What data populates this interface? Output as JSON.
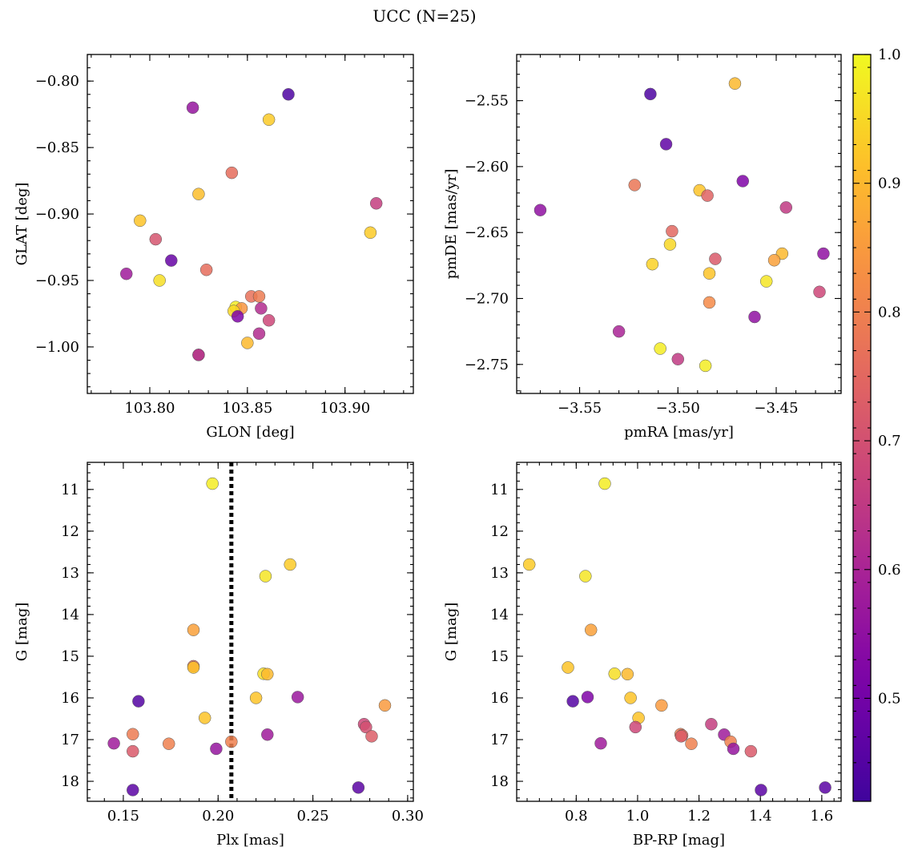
{
  "figure": {
    "title": "UCC (N=25)"
  },
  "colorbar": {
    "min": 0.42,
    "max": 1.0,
    "ticks": [
      0.5,
      0.6,
      0.7,
      0.8,
      0.9,
      1.0
    ],
    "tick_labels": [
      "0.5",
      "0.6",
      "0.7",
      "0.8",
      "0.9",
      "1.0"
    ],
    "colormap": "plasma"
  },
  "chart_data": [
    {
      "id": "glon-glat",
      "type": "scatter",
      "xlabel": "GLON [deg]",
      "ylabel": "GLAT [deg]",
      "xlim": [
        103.768,
        103.935
      ],
      "ylim": [
        -1.035,
        -0.78
      ],
      "y_inverted": false,
      "xticks": [
        103.8,
        103.85,
        103.9
      ],
      "xtick_labels": [
        "103.80",
        "103.85",
        "103.90"
      ],
      "yticks": [
        -0.8,
        -0.85,
        -0.9,
        -0.95,
        -1.0
      ],
      "ytick_labels": [
        "−0.80",
        "−0.85",
        "−0.90",
        "−0.95",
        "−1.00"
      ],
      "x": [
        103.871,
        103.822,
        103.861,
        103.842,
        103.825,
        103.916,
        103.795,
        103.913,
        103.803,
        103.811,
        103.788,
        103.829,
        103.805,
        103.852,
        103.856,
        103.844,
        103.847,
        103.857,
        103.843,
        103.845,
        103.861,
        103.856,
        103.85,
        103.825,
        103.825
      ],
      "y": [
        -0.81,
        -0.82,
        -0.829,
        -0.869,
        -0.885,
        -0.892,
        -0.905,
        -0.914,
        -0.919,
        -0.935,
        -0.945,
        -0.942,
        -0.95,
        -0.962,
        -0.962,
        -0.97,
        -0.971,
        -0.971,
        -0.973,
        -0.977,
        -0.98,
        -0.99,
        -0.997,
        -1.006,
        -1.006
      ],
      "c": [
        0.44,
        0.56,
        0.93,
        0.76,
        0.91,
        0.66,
        0.92,
        0.93,
        0.71,
        0.48,
        0.58,
        0.76,
        0.96,
        0.77,
        0.79,
        0.98,
        0.84,
        0.62,
        0.95,
        0.52,
        0.68,
        0.62,
        0.9,
        0.88,
        0.6
      ]
    },
    {
      "id": "pmra-pmde",
      "type": "scatter",
      "xlabel": "pmRA [mas/yr]",
      "ylabel": "pmDE [mas/yr]",
      "xlim": [
        -3.582,
        -3.417
      ],
      "ylim": [
        -2.772,
        -2.515
      ],
      "y_inverted": false,
      "xticks": [
        -3.55,
        -3.5,
        -3.45
      ],
      "xtick_labels": [
        "−3.55",
        "−3.50",
        "−3.45"
      ],
      "yticks": [
        -2.55,
        -2.6,
        -2.65,
        -2.7,
        -2.75
      ],
      "ytick_labels": [
        "−2.55",
        "−2.60",
        "−2.65",
        "−2.70",
        "−2.75"
      ],
      "x": [
        -3.471,
        -3.514,
        -3.506,
        -3.467,
        -3.522,
        -3.489,
        -3.485,
        -3.445,
        -3.57,
        -3.503,
        -3.504,
        -3.481,
        -3.447,
        -3.451,
        -3.513,
        -3.426,
        -3.484,
        -3.455,
        -3.428,
        -3.484,
        -3.461,
        -3.53,
        -3.509,
        -3.5,
        -3.486
      ],
      "y": [
        -2.537,
        -2.545,
        -2.583,
        -2.611,
        -2.614,
        -2.618,
        -2.622,
        -2.631,
        -2.633,
        -2.649,
        -2.659,
        -2.67,
        -2.666,
        -2.671,
        -2.674,
        -2.666,
        -2.681,
        -2.687,
        -2.695,
        -2.703,
        -2.714,
        -2.725,
        -2.738,
        -2.746,
        -2.751
      ],
      "c": [
        0.9,
        0.44,
        0.47,
        0.52,
        0.78,
        0.92,
        0.74,
        0.65,
        0.55,
        0.75,
        0.95,
        0.72,
        0.9,
        0.86,
        0.94,
        0.55,
        0.92,
        0.97,
        0.68,
        0.82,
        0.55,
        0.6,
        0.98,
        0.65,
        0.98
      ]
    },
    {
      "id": "plx-g",
      "type": "scatter",
      "xlabel": "Plx [mas]",
      "ylabel": "G [mag]",
      "xlim": [
        0.131,
        0.303
      ],
      "ylim": [
        18.48,
        10.35
      ],
      "y_inverted": true,
      "xticks": [
        0.15,
        0.2,
        0.25,
        0.3
      ],
      "xtick_labels": [
        "0.15",
        "0.20",
        "0.25",
        "0.30"
      ],
      "yticks": [
        11,
        12,
        13,
        14,
        15,
        16,
        17,
        18
      ],
      "ytick_labels": [
        "11",
        "12",
        "13",
        "14",
        "15",
        "16",
        "17",
        "18"
      ],
      "vline": {
        "x": 0.207
      },
      "x": [
        0.197,
        0.238,
        0.225,
        0.187,
        0.187,
        0.187,
        0.224,
        0.226,
        0.158,
        0.22,
        0.242,
        0.288,
        0.193,
        0.277,
        0.278,
        0.281,
        0.155,
        0.226,
        0.207,
        0.145,
        0.174,
        0.199,
        0.155,
        0.155,
        0.274
      ],
      "y": [
        10.86,
        12.8,
        13.08,
        14.37,
        15.24,
        15.27,
        15.42,
        15.43,
        16.08,
        16.0,
        15.98,
        16.18,
        16.48,
        16.63,
        16.7,
        16.92,
        16.87,
        16.88,
        17.05,
        17.09,
        17.1,
        17.22,
        17.28,
        18.21,
        18.15
      ],
      "c": [
        0.98,
        0.93,
        0.97,
        0.86,
        0.76,
        0.92,
        0.96,
        0.9,
        0.45,
        0.92,
        0.57,
        0.85,
        0.92,
        0.68,
        0.7,
        0.73,
        0.79,
        0.58,
        0.8,
        0.58,
        0.8,
        0.56,
        0.72,
        0.46,
        0.46
      ],
      "c_note": ""
    },
    {
      "id": "bprp-g",
      "type": "scatter",
      "xlabel": "BP-RP [mag]",
      "ylabel": "G [mag]",
      "xlim": [
        0.606,
        1.663
      ],
      "ylim": [
        18.48,
        10.35
      ],
      "y_inverted": true,
      "xticks": [
        0.8,
        1.0,
        1.2,
        1.4,
        1.6
      ],
      "xtick_labels": [
        "0.8",
        "1.0",
        "1.2",
        "1.4",
        "1.6"
      ],
      "yticks": [
        11,
        12,
        13,
        14,
        15,
        16,
        17,
        18
      ],
      "ytick_labels": [
        "11",
        "12",
        "13",
        "14",
        "15",
        "16",
        "17",
        "18"
      ],
      "x": [
        0.893,
        0.647,
        0.83,
        0.848,
        0.773,
        0.925,
        0.967,
        0.837,
        0.789,
        0.977,
        1.078,
        1.003,
        0.993,
        1.24,
        1.14,
        1.145,
        1.282,
        1.175,
        1.303,
        1.312,
        1.369,
        0.88,
        1.402,
        1.611,
        1.142
      ],
      "y": [
        10.86,
        12.8,
        13.08,
        14.37,
        15.27,
        15.42,
        15.43,
        15.98,
        16.08,
        16.0,
        16.18,
        16.48,
        16.7,
        16.63,
        16.87,
        16.9,
        16.88,
        17.1,
        17.05,
        17.22,
        17.28,
        17.09,
        18.21,
        18.15,
        16.92
      ],
      "c": [
        0.98,
        0.93,
        0.97,
        0.86,
        0.92,
        0.96,
        0.9,
        0.52,
        0.45,
        0.92,
        0.85,
        0.92,
        0.68,
        0.66,
        0.79,
        0.76,
        0.58,
        0.8,
        0.8,
        0.56,
        0.72,
        0.58,
        0.46,
        0.46,
        0.73
      ]
    }
  ]
}
